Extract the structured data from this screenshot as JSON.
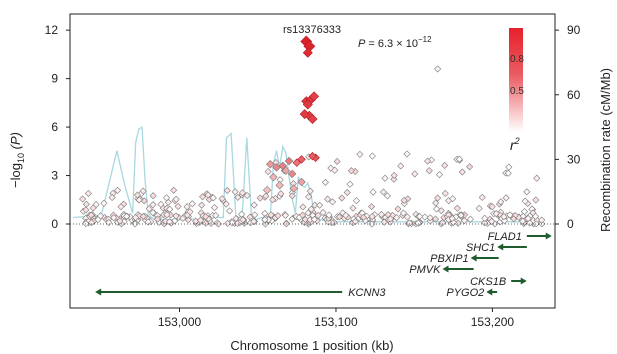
{
  "chart_data": {
    "type": "scatter",
    "title": "",
    "xlabel": "Chromosome 1 position (kb)",
    "ylabel_left": "−log",
    "ylabel_left_sub": "10",
    "ylabel_left_paren": " (P)",
    "ylabel_right": "Recombination rate (cM/Mb)",
    "xlim": [
      152930,
      153240
    ],
    "ylim_left": [
      0,
      13
    ],
    "ylim_right": [
      0,
      97.5
    ],
    "x_ticks": [
      153000,
      153100,
      153200
    ],
    "x_tick_labels": [
      "153,000",
      "153,100",
      "153,200"
    ],
    "y_ticks_left": [
      0,
      3,
      6,
      9,
      12
    ],
    "y_tick_labels_left": [
      "0",
      "3",
      "6",
      "9",
      "12"
    ],
    "y_ticks_right": [
      0,
      30,
      60,
      90
    ],
    "y_tick_labels_right": [
      "0",
      "30",
      "60",
      "90"
    ],
    "lead_snp": {
      "label": "rs13376333",
      "x": 153081,
      "y": 11.3
    },
    "p_annotation": {
      "p": "P",
      "eq": " = 6.3 × 10",
      "exp": "−12"
    },
    "legend": {
      "title": "r",
      "title_sup": "2",
      "ticks": [
        0.8,
        0.5
      ],
      "tick_labels": [
        "0.8",
        "0.5"
      ],
      "range": [
        0,
        1
      ],
      "color_high": "#e8202a",
      "color_low": "#ffffff"
    },
    "colors": {
      "recomb_line": "#a8d8e0",
      "gene": "#1f5c2e",
      "snp_low": "#ffffff",
      "snp_high": "#d92128",
      "snp_stroke": "#7a7a7a",
      "axis": "#222222"
    },
    "recombination_rate": {
      "x": [
        152932,
        152950,
        152960,
        152965,
        152970,
        152972,
        152974,
        152976,
        152978,
        152980,
        152982,
        152985,
        152990,
        152995,
        153000,
        153005,
        153010,
        153015,
        153020,
        153025,
        153028,
        153030,
        153033,
        153036,
        153038,
        153040,
        153043,
        153046,
        153049,
        153052,
        153055,
        153058,
        153060,
        153062,
        153064,
        153066,
        153068,
        153070,
        153072,
        153074,
        153076,
        153078,
        153080,
        153082,
        153084,
        153086,
        153090,
        153100,
        153120,
        153140,
        153160,
        153180,
        153200,
        153220,
        153232
      ],
      "y": [
        3,
        4,
        34,
        18,
        5,
        38,
        44,
        45,
        20,
        5,
        3,
        2,
        2,
        2,
        2,
        3,
        2,
        2,
        4,
        3,
        3,
        40,
        42,
        4,
        3,
        3,
        40,
        3,
        2,
        3,
        2,
        3,
        28,
        34,
        26,
        36,
        33,
        22,
        12,
        5,
        22,
        18,
        17,
        19,
        14,
        5,
        2,
        1,
        1,
        1,
        1,
        1,
        1,
        1,
        1
      ]
    },
    "snps_high_ld": [
      {
        "x": 153081,
        "y": 11.3,
        "r2": 1.0
      },
      {
        "x": 153083,
        "y": 11.0,
        "r2": 0.98
      },
      {
        "x": 153082,
        "y": 10.6,
        "r2": 0.95
      },
      {
        "x": 153081,
        "y": 7.6,
        "r2": 0.9
      },
      {
        "x": 153084,
        "y": 7.7,
        "r2": 0.9
      },
      {
        "x": 153082,
        "y": 7.4,
        "r2": 0.88
      },
      {
        "x": 153086,
        "y": 7.9,
        "r2": 0.85
      },
      {
        "x": 153083,
        "y": 6.7,
        "r2": 0.85
      },
      {
        "x": 153080,
        "y": 6.8,
        "r2": 0.88
      },
      {
        "x": 153085,
        "y": 6.5,
        "r2": 0.85
      },
      {
        "x": 153087,
        "y": 4.1,
        "r2": 0.75
      },
      {
        "x": 153085,
        "y": 4.2,
        "r2": 0.72
      },
      {
        "x": 153078,
        "y": 4.0,
        "r2": 0.7
      },
      {
        "x": 153075,
        "y": 3.8,
        "r2": 0.62
      },
      {
        "x": 153070,
        "y": 3.9,
        "r2": 0.6
      },
      {
        "x": 153066,
        "y": 3.6,
        "r2": 0.58
      },
      {
        "x": 153062,
        "y": 3.5,
        "r2": 0.55
      },
      {
        "x": 153058,
        "y": 3.7,
        "r2": 0.45
      },
      {
        "x": 153072,
        "y": 3.1,
        "r2": 0.55
      },
      {
        "x": 153068,
        "y": 3.3,
        "r2": 0.4
      },
      {
        "x": 153060,
        "y": 2.9,
        "r2": 0.35
      },
      {
        "x": 153078,
        "y": 2.6,
        "r2": 0.42
      },
      {
        "x": 153064,
        "y": 2.4,
        "r2": 0.32
      },
      {
        "x": 153073,
        "y": 2.2,
        "r2": 0.38
      },
      {
        "x": 153056,
        "y": 2.1,
        "r2": 0.28
      }
    ],
    "snps_other_seed": 7,
    "snps_other_count": 430,
    "snps_other_distribution": "dense near 0–2.5 across region, scattered 2.5–4.5 between 153,060 and 153,180 kb, one at 9.6 near 153,165 kb",
    "genes": [
      {
        "name": "FLAD1",
        "start": 153222,
        "end": 153236,
        "row": 0,
        "strand": "+",
        "label_side": "left"
      },
      {
        "name": "SHC1",
        "start": 153205,
        "end": 153222,
        "row": 1,
        "strand": "-",
        "label_side": "left"
      },
      {
        "name": "PBXIP1",
        "start": 153188,
        "end": 153204,
        "row": 2,
        "strand": "-",
        "label_side": "left"
      },
      {
        "name": "PMVK",
        "start": 153170,
        "end": 153188,
        "row": 3,
        "strand": "-",
        "label_side": "left"
      },
      {
        "name": "CKS1B",
        "start": 153212,
        "end": 153220,
        "row": 4,
        "strand": "+",
        "label_side": "left"
      },
      {
        "name": "KCNN3",
        "start": 152948,
        "end": 153104,
        "row": 5,
        "strand": "-",
        "label_side": "right"
      },
      {
        "name": "PYGO2",
        "start": 153198,
        "end": 153203,
        "row": 5,
        "strand": "-",
        "label_side": "left"
      }
    ]
  }
}
